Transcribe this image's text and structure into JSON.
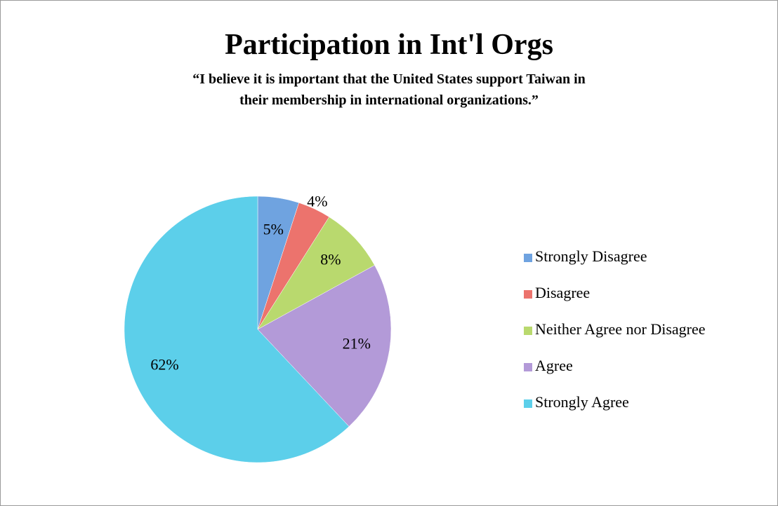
{
  "chart_data": {
    "type": "pie",
    "title": "Participation in Int'l Orgs",
    "subtitle": "“I believe it is important that the United States support Taiwan in their membership in international organizations.”",
    "categories": [
      "Strongly Disagree",
      "Disagree",
      "Neither Agree nor Disagree",
      "Agree",
      "Strongly Agree"
    ],
    "values": [
      5,
      4,
      8,
      21,
      62
    ],
    "value_labels": [
      "5%",
      "4%",
      "8%",
      "21%",
      "62%"
    ],
    "colors": [
      "#6fa3e0",
      "#ec736d",
      "#b9d96e",
      "#b39ad8",
      "#5ccfea"
    ],
    "legend": "right"
  }
}
